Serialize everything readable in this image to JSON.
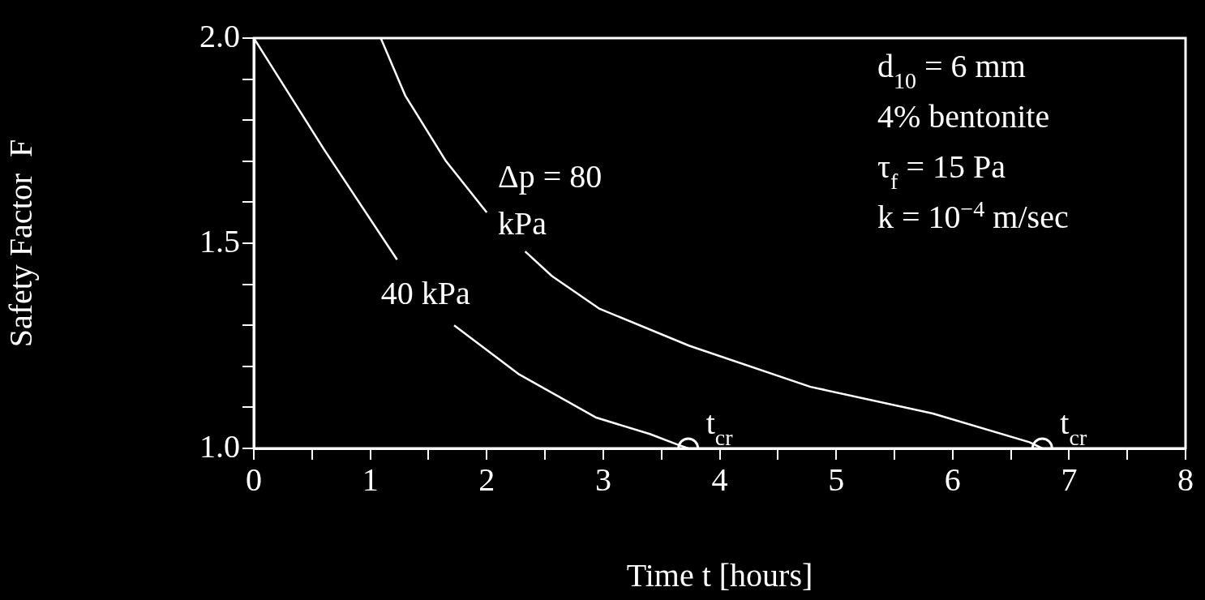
{
  "chart_data": {
    "type": "line",
    "xlabel": "Time t [hours]",
    "ylabel": "Safety Factor  F",
    "xlim": [
      0,
      8
    ],
    "ylim": [
      1.0,
      2.0
    ],
    "xticks": [
      0,
      {
        "value": 0.5,
        "label": null
      },
      1,
      {
        "value": 1.5,
        "label": null
      },
      2,
      {
        "value": 2.5,
        "label": null
      },
      3,
      {
        "value": 3.5,
        "label": null
      },
      4,
      {
        "value": 4.5,
        "label": null
      },
      5,
      {
        "value": 5.5,
        "label": null
      },
      6,
      {
        "value": 6.5,
        "label": null
      },
      7,
      {
        "value": 7.5,
        "label": null
      },
      8
    ],
    "yticks": [
      {
        "value": 1.0,
        "label": "1.0"
      },
      {
        "value": 1.1,
        "label": null
      },
      {
        "value": 1.2,
        "label": null
      },
      {
        "value": 1.3,
        "label": null
      },
      {
        "value": 1.4,
        "label": null
      },
      {
        "value": 1.5,
        "label": "1.5"
      },
      {
        "value": 1.6,
        "label": null
      },
      {
        "value": 1.7,
        "label": null
      },
      {
        "value": 1.8,
        "label": null
      },
      {
        "value": 1.9,
        "label": null
      },
      {
        "value": 2.0,
        "label": "2.0"
      }
    ],
    "grid": false,
    "legend": false,
    "marker": "none",
    "line_style": "solid",
    "series": [
      {
        "name": "40 kPa",
        "color": "#ffffff",
        "x": [
          0,
          0.6,
          1.23,
          1.5,
          1.72,
          2.28,
          2.94,
          3.4,
          3.63,
          3.73
        ],
        "values": [
          2.0,
          1.73,
          1.46,
          null,
          1.3,
          1.18,
          1.075,
          1.035,
          1.01,
          1.0
        ]
      },
      {
        "name": "Δp = 80 kPa",
        "color": "#ffffff",
        "x": [
          1.09,
          1.3,
          1.65,
          2.0,
          2.15,
          2.33,
          2.56,
          2.97,
          3.74,
          4.78,
          5.83,
          6.66,
          6.77
        ],
        "values": [
          2.0,
          1.86,
          1.7,
          1.575,
          null,
          1.48,
          1.42,
          1.34,
          1.25,
          1.15,
          1.085,
          1.015,
          1.0
        ]
      },
      {
        "type": "scatter",
        "marker": "circle",
        "color": "#ffffff",
        "x": [
          3.73,
          6.77
        ],
        "values": [
          1.0,
          1.0
        ],
        "value_labels": [
          "t$_{cr}$",
          "t$_{cr}$"
        ]
      }
    ],
    "annotations": [
      "d$_{10}$ = 6 mm",
      "4% bentonite",
      "τ$_{f}$ = 15 Pa",
      "k = 10$^{−4}$ m/sec"
    ]
  }
}
